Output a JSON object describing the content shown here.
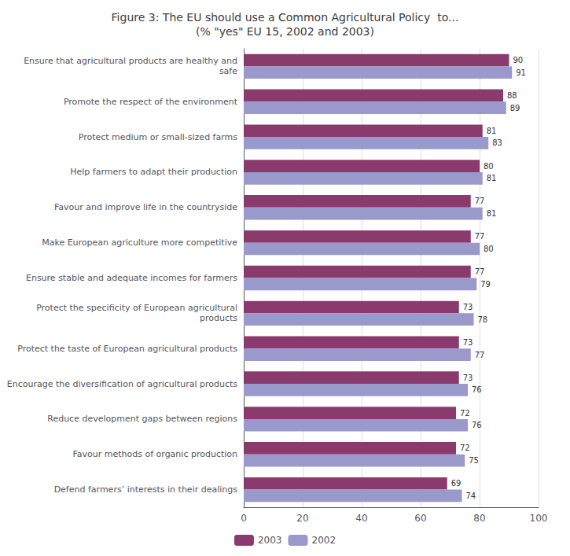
{
  "chart_data": {
    "type": "bar",
    "orientation": "horizontal",
    "title": "Figure 3: The EU should use a Common Agricultural Policy  to...\n(% \"yes\" EU 15, 2002 and 2003)",
    "categories": [
      "Ensure that agricultural products are healthy and\nsafe",
      "Promote the respect of the environment",
      "Protect medium or small-sized farms",
      "Help farmers to adapt their production",
      "Favour and improve life in the countryside",
      "Make European agriculture more competitive",
      "Ensure stable and adequate incomes for farmers",
      "Protect the specificity of European agricultural\nproducts",
      "Protect the taste of European agricultural products",
      "Encourage the diversification of agricultural products",
      "Reduce development gaps between regions",
      "Favour methods of organic production",
      "Defend farmers’ interests in their dealings"
    ],
    "series": [
      {
        "name": "2003",
        "color": "#8B3A6E",
        "values": [
          90,
          88,
          81,
          80,
          77,
          77,
          77,
          73,
          73,
          73,
          72,
          72,
          69
        ]
      },
      {
        "name": "2002",
        "color": "#9999CC",
        "values": [
          91,
          89,
          83,
          81,
          81,
          80,
          79,
          78,
          77,
          76,
          76,
          75,
          74
        ]
      }
    ],
    "xlim": [
      0,
      100
    ],
    "xticks": [
      0,
      20,
      40,
      60,
      80,
      100
    ],
    "grid": true,
    "data_labels": true,
    "legend": "bottom"
  }
}
